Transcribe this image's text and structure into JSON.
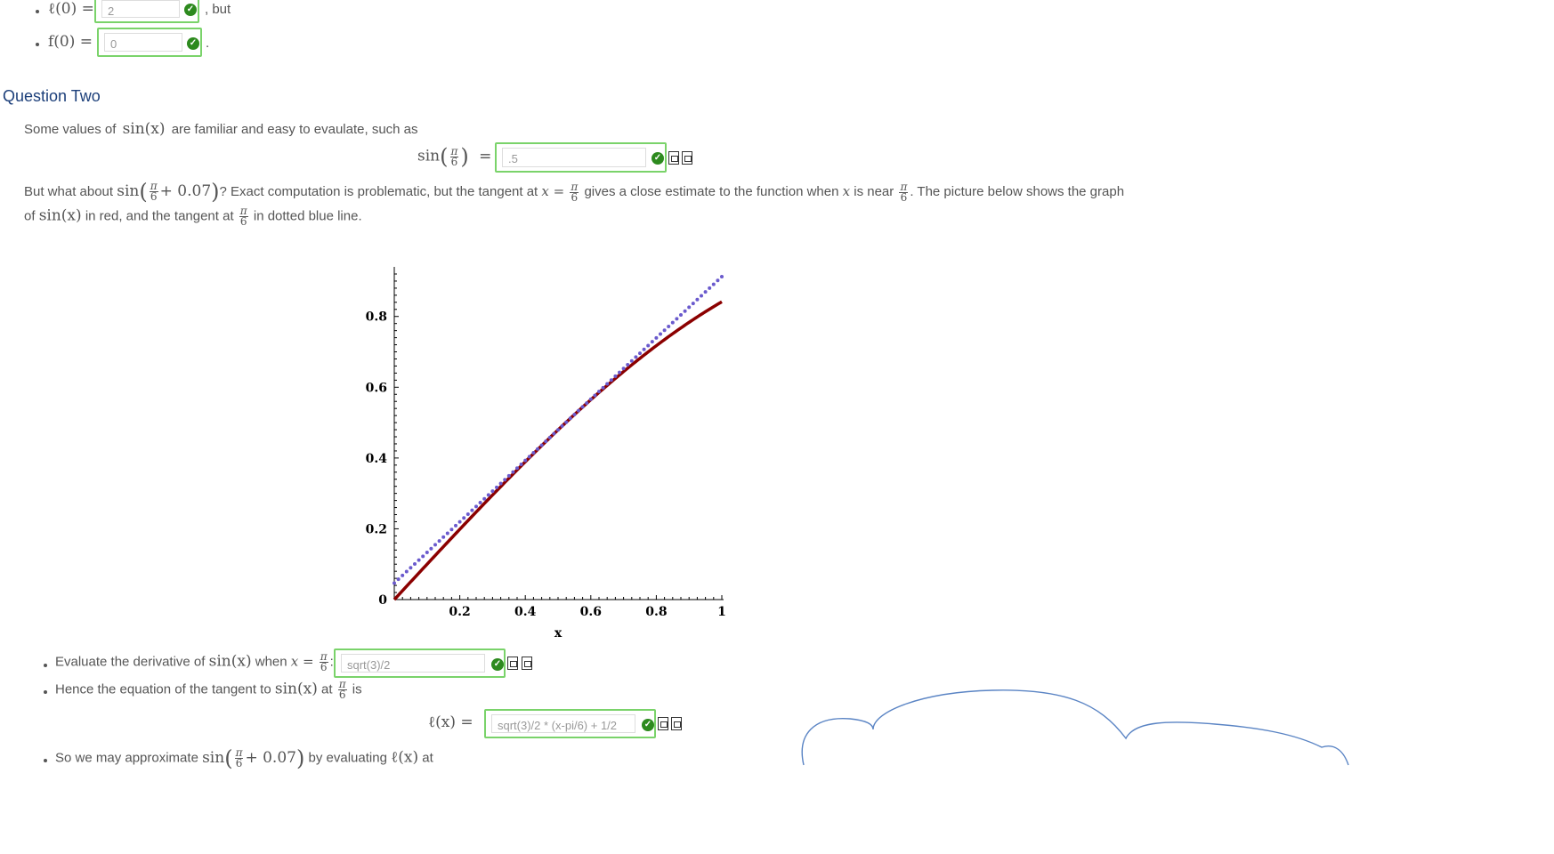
{
  "part_one": {
    "items": [
      {
        "math_label": "ℓ(0) =",
        "answer": "2",
        "suffix": ", but"
      },
      {
        "math_label": "f(0) =",
        "answer": "0",
        "suffix": "."
      }
    ]
  },
  "question_two": {
    "heading": "Question Two",
    "intro_text": "Some values of",
    "intro_math": "sin(x)",
    "intro_text2": "are familiar and easy to evaulate, such as",
    "sin_pi6_lhs": "sin",
    "equals": "=",
    "sin_pi6_answer": ".5",
    "para2": {
      "t1": "But what about",
      "m1": "sin",
      "m2": "+ 0.07",
      "t2": "? Exact computation is problematic, but the tangent at",
      "m3": "x =",
      "t3": "gives a close estimate to the function when",
      "m4": "x",
      "t4": "is near",
      "t5": ". The picture below shows the graph",
      "t6": "of",
      "m5": "sin(x)",
      "t7": "in red, and the tangent at",
      "t8": "in dotted blue line."
    },
    "fraction": {
      "num": "π",
      "den": "6"
    }
  },
  "chart_data": {
    "type": "line",
    "xlabel": "x",
    "ylabel": "",
    "xlim": [
      0,
      1
    ],
    "ylim": [
      0,
      0.92
    ],
    "x_ticks": [
      "0.2",
      "0.4",
      "0.6",
      "0.8",
      "1"
    ],
    "y_ticks": [
      "0",
      "0.2",
      "0.4",
      "0.6",
      "0.8"
    ],
    "series": [
      {
        "label": "sin(x)",
        "color": "#8b0000",
        "style": "solid",
        "function": "sin(x)"
      },
      {
        "label": "tangent at pi/6",
        "color": "#6a5acd",
        "style": "dotted",
        "function": "sqrt(3)/2*(x-pi/6)+1/2"
      }
    ]
  },
  "bullets": {
    "b1": {
      "text": "Evaluate the derivative of",
      "math": "sin(x)",
      "text2": "when",
      "math2": "x =",
      "answer": "sqrt(3)/2"
    },
    "b2": {
      "text": "Hence the equation of the tangent to",
      "math": "sin(x)",
      "text2": "at",
      "text3": "is"
    },
    "tangent_eq": {
      "lhs": "ℓ(x) =",
      "answer": "sqrt(3)/2 * (x-pi/6) + 1/2"
    },
    "b3": {
      "text": "So we may approximate",
      "math": "sin",
      "math2": "+ 0.07",
      "text2": "by evaluating",
      "math3": "ℓ(x)",
      "text3": "at"
    }
  },
  "colors": {
    "heading": "#1c3f7a",
    "correct_border": "#7ad36a",
    "check": "#2d8a1e",
    "sin_curve": "#8b0000",
    "tangent": "#6a5acd",
    "scribble": "#5a84c4"
  },
  "icons": [
    "check-circle-icon",
    "preview-icon",
    "syntax-icon"
  ]
}
